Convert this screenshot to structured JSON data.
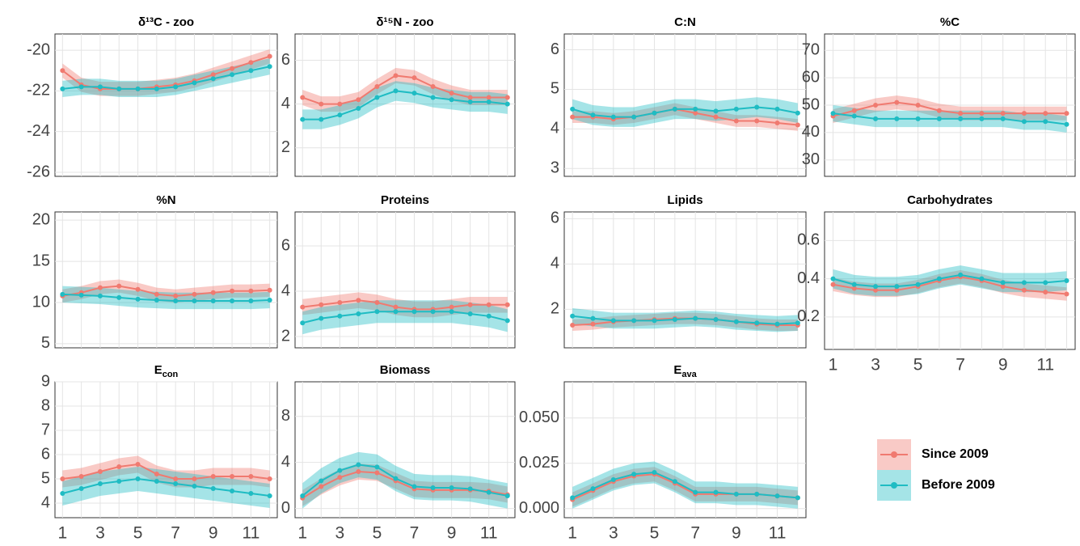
{
  "chart_data": [
    {
      "type": "line",
      "title": "δ¹³C - zoo",
      "x": [
        1,
        2,
        3,
        4,
        5,
        6,
        7,
        8,
        9,
        10,
        11,
        12
      ],
      "xlim": [
        0.6,
        12.4
      ],
      "ylim": [
        -26.2,
        -19.2
      ],
      "yticks": [
        -26,
        -24,
        -22,
        -20
      ],
      "grid": true,
      "series": [
        {
          "name": "Since 2009",
          "color": "#f07a70",
          "band_halfwidth": 0.35,
          "values": [
            -21.0,
            -21.7,
            -21.9,
            -21.9,
            -21.9,
            -21.8,
            -21.7,
            -21.5,
            -21.2,
            -20.9,
            -20.6,
            -20.3
          ]
        },
        {
          "name": "Before 2009",
          "color": "#1fbcc3",
          "band_halfwidth": 0.4,
          "values": [
            -21.9,
            -21.8,
            -21.8,
            -21.9,
            -21.9,
            -21.9,
            -21.8,
            -21.6,
            -21.4,
            -21.2,
            -21.0,
            -20.8
          ]
        }
      ]
    },
    {
      "type": "line",
      "title": "δ¹⁵N - zoo",
      "x": [
        1,
        2,
        3,
        4,
        5,
        6,
        7,
        8,
        9,
        10,
        11,
        12
      ],
      "xlim": [
        0.6,
        12.4
      ],
      "ylim": [
        0.7,
        7.2
      ],
      "yticks": [
        2,
        4,
        6
      ],
      "grid": true,
      "series": [
        {
          "name": "Since 2009",
          "color": "#f07a70",
          "band_halfwidth": 0.35,
          "values": [
            4.3,
            4.0,
            4.0,
            4.2,
            4.8,
            5.3,
            5.2,
            4.8,
            4.5,
            4.3,
            4.3,
            4.3
          ]
        },
        {
          "name": "Before 2009",
          "color": "#1fbcc3",
          "band_halfwidth": 0.45,
          "values": [
            3.3,
            3.3,
            3.5,
            3.8,
            4.3,
            4.6,
            4.5,
            4.3,
            4.2,
            4.1,
            4.1,
            4.0
          ]
        }
      ]
    },
    {
      "type": "line",
      "title": "C:N",
      "x": [
        1,
        2,
        3,
        4,
        5,
        6,
        7,
        8,
        9,
        10,
        11,
        12
      ],
      "xlim": [
        0.6,
        12.4
      ],
      "ylim": [
        2.8,
        6.4
      ],
      "yticks": [
        3,
        4,
        5,
        6
      ],
      "grid": true,
      "series": [
        {
          "name": "Since 2009",
          "color": "#f07a70",
          "band_halfwidth": 0.15,
          "values": [
            4.3,
            4.3,
            4.25,
            4.3,
            4.4,
            4.5,
            4.4,
            4.3,
            4.2,
            4.2,
            4.15,
            4.1
          ]
        },
        {
          "name": "Before 2009",
          "color": "#1fbcc3",
          "band_halfwidth": 0.25,
          "values": [
            4.5,
            4.35,
            4.3,
            4.3,
            4.4,
            4.5,
            4.5,
            4.45,
            4.5,
            4.55,
            4.5,
            4.4
          ]
        }
      ]
    },
    {
      "type": "line",
      "title": "%C",
      "x": [
        1,
        2,
        3,
        4,
        5,
        6,
        7,
        8,
        9,
        10,
        11,
        12
      ],
      "xlim": [
        0.6,
        12.4
      ],
      "ylim": [
        24,
        76
      ],
      "yticks": [
        30,
        40,
        50,
        60,
        70
      ],
      "grid": true,
      "series": [
        {
          "name": "Since 2009",
          "color": "#f07a70",
          "band_halfwidth": 2.5,
          "values": [
            46,
            48,
            50,
            51,
            50,
            48,
            47,
            47,
            47,
            47,
            47,
            47
          ]
        },
        {
          "name": "Before 2009",
          "color": "#1fbcc3",
          "band_halfwidth": 3,
          "values": [
            47,
            46,
            45,
            45,
            45,
            45,
            45,
            45,
            45,
            44,
            44,
            43
          ]
        }
      ]
    },
    {
      "type": "line",
      "title": "%N",
      "x": [
        1,
        2,
        3,
        4,
        5,
        6,
        7,
        8,
        9,
        10,
        11,
        12
      ],
      "xlim": [
        0.6,
        12.4
      ],
      "ylim": [
        4.5,
        21
      ],
      "yticks": [
        5,
        10,
        15,
        20
      ],
      "grid": true,
      "series": [
        {
          "name": "Since 2009",
          "color": "#f07a70",
          "band_halfwidth": 0.8,
          "values": [
            10.8,
            11.2,
            11.8,
            12,
            11.6,
            11,
            10.8,
            11,
            11.2,
            11.4,
            11.4,
            11.5
          ]
        },
        {
          "name": "Before 2009",
          "color": "#1fbcc3",
          "band_halfwidth": 1.0,
          "values": [
            11,
            10.9,
            10.8,
            10.6,
            10.4,
            10.3,
            10.2,
            10.2,
            10.2,
            10.2,
            10.2,
            10.3
          ]
        }
      ]
    },
    {
      "type": "line",
      "title": "Proteins",
      "x": [
        1,
        2,
        3,
        4,
        5,
        6,
        7,
        8,
        9,
        10,
        11,
        12
      ],
      "xlim": [
        0.6,
        12.4
      ],
      "ylim": [
        1.5,
        7.5
      ],
      "yticks": [
        2,
        4,
        6
      ],
      "grid": true,
      "series": [
        {
          "name": "Since 2009",
          "color": "#f07a70",
          "band_halfwidth": 0.35,
          "values": [
            3.3,
            3.4,
            3.5,
            3.6,
            3.5,
            3.3,
            3.2,
            3.2,
            3.3,
            3.4,
            3.4,
            3.4
          ]
        },
        {
          "name": "Before 2009",
          "color": "#1fbcc3",
          "band_halfwidth": 0.5,
          "values": [
            2.6,
            2.8,
            2.9,
            3.0,
            3.1,
            3.1,
            3.1,
            3.1,
            3.1,
            3.0,
            2.9,
            2.7
          ]
        }
      ]
    },
    {
      "type": "line",
      "title": "Lipids",
      "x": [
        1,
        2,
        3,
        4,
        5,
        6,
        7,
        8,
        9,
        10,
        11,
        12
      ],
      "xlim": [
        0.6,
        12.4
      ],
      "ylim": [
        0.3,
        6.3
      ],
      "yticks": [
        2,
        4,
        6
      ],
      "grid": true,
      "series": [
        {
          "name": "Since 2009",
          "color": "#f07a70",
          "band_halfwidth": 0.25,
          "values": [
            1.3,
            1.35,
            1.45,
            1.5,
            1.55,
            1.6,
            1.6,
            1.55,
            1.45,
            1.35,
            1.3,
            1.3
          ]
        },
        {
          "name": "Before 2009",
          "color": "#1fbcc3",
          "band_halfwidth": 0.35,
          "values": [
            1.7,
            1.6,
            1.5,
            1.5,
            1.5,
            1.55,
            1.6,
            1.55,
            1.45,
            1.4,
            1.35,
            1.4
          ]
        }
      ]
    },
    {
      "type": "line",
      "title": "Carbohydrates",
      "x": [
        1,
        2,
        3,
        4,
        5,
        6,
        7,
        8,
        9,
        10,
        11,
        12
      ],
      "xlim": [
        0.6,
        12.4
      ],
      "xticks": [
        1,
        3,
        5,
        7,
        9,
        11
      ],
      "ylim": [
        0.03,
        0.75
      ],
      "yticks": [
        0.2,
        0.4,
        0.6
      ],
      "grid": true,
      "series": [
        {
          "name": "Since 2009",
          "color": "#f07a70",
          "band_halfwidth": 0.035,
          "values": [
            0.37,
            0.35,
            0.34,
            0.34,
            0.36,
            0.39,
            0.41,
            0.39,
            0.36,
            0.34,
            0.33,
            0.32
          ]
        },
        {
          "name": "Before 2009",
          "color": "#1fbcc3",
          "band_halfwidth": 0.05,
          "values": [
            0.4,
            0.37,
            0.36,
            0.36,
            0.37,
            0.4,
            0.42,
            0.4,
            0.38,
            0.38,
            0.38,
            0.39
          ]
        }
      ]
    },
    {
      "type": "line",
      "title": "E",
      "title_subscript": "con",
      "x": [
        1,
        2,
        3,
        4,
        5,
        6,
        7,
        8,
        9,
        10,
        11,
        12
      ],
      "xlim": [
        0.6,
        12.4
      ],
      "xticks": [
        1,
        3,
        5,
        7,
        9,
        11
      ],
      "ylim": [
        3.4,
        9.0
      ],
      "yticks": [
        4,
        5,
        6,
        7,
        8,
        9
      ],
      "grid": true,
      "series": [
        {
          "name": "Since 2009",
          "color": "#f07a70",
          "band_halfwidth": 0.35,
          "values": [
            5.0,
            5.1,
            5.3,
            5.5,
            5.6,
            5.2,
            5.0,
            5.0,
            5.1,
            5.1,
            5.1,
            5.0
          ]
        },
        {
          "name": "Before 2009",
          "color": "#1fbcc3",
          "band_halfwidth": 0.5,
          "values": [
            4.4,
            4.6,
            4.8,
            4.9,
            5.0,
            4.9,
            4.8,
            4.7,
            4.6,
            4.5,
            4.4,
            4.3
          ]
        }
      ]
    },
    {
      "type": "line",
      "title": "Biomass",
      "x": [
        1,
        2,
        3,
        4,
        5,
        6,
        7,
        8,
        9,
        10,
        11,
        12
      ],
      "xlim": [
        0.6,
        12.4
      ],
      "xticks": [
        1,
        3,
        5,
        7,
        9,
        11
      ],
      "ylim": [
        -0.8,
        11
      ],
      "yticks": [
        0,
        4,
        8
      ],
      "grid": true,
      "series": [
        {
          "name": "Since 2009",
          "color": "#f07a70",
          "band_halfwidth": 0.7,
          "values": [
            0.9,
            1.9,
            2.7,
            3.2,
            3.1,
            2.4,
            1.7,
            1.6,
            1.6,
            1.6,
            1.5,
            1.2
          ]
        },
        {
          "name": "Before 2009",
          "color": "#1fbcc3",
          "band_halfwidth": 1.1,
          "values": [
            1.1,
            2.4,
            3.3,
            3.8,
            3.6,
            2.6,
            1.9,
            1.8,
            1.8,
            1.7,
            1.4,
            1.1
          ]
        }
      ]
    },
    {
      "type": "line",
      "title": "E",
      "title_subscript": "ava",
      "x": [
        1,
        2,
        3,
        4,
        5,
        6,
        7,
        8,
        9,
        10,
        11,
        12
      ],
      "xlim": [
        0.6,
        12.4
      ],
      "xticks": [
        1,
        3,
        5,
        7,
        9,
        11
      ],
      "ylim": [
        -0.005,
        0.07
      ],
      "yticks": [
        {
          "value": 0,
          "label": "0.000"
        },
        0.025,
        {
          "value": 0.05,
          "label": "0.050"
        }
      ],
      "grid": true,
      "series": [
        {
          "name": "Since 2009",
          "color": "#f07a70",
          "band_halfwidth": 0.004,
          "values": [
            0.005,
            0.01,
            0.015,
            0.018,
            0.019,
            0.014,
            0.008,
            0.008,
            0.008,
            0.008,
            0.007,
            0.006
          ]
        },
        {
          "name": "Before 2009",
          "color": "#1fbcc3",
          "band_halfwidth": 0.006,
          "values": [
            0.006,
            0.011,
            0.016,
            0.019,
            0.02,
            0.015,
            0.009,
            0.009,
            0.008,
            0.008,
            0.007,
            0.006
          ]
        }
      ]
    }
  ]
}
